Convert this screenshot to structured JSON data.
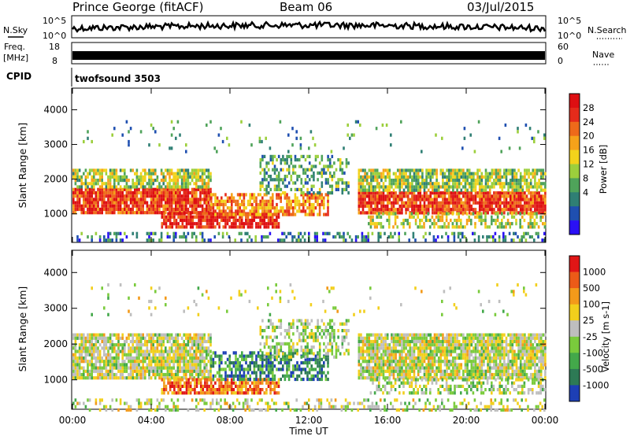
{
  "header": {
    "station": "Prince George (fitACF)",
    "beam": "Beam 06",
    "date": "03/Jul/2015"
  },
  "top_panels": {
    "nsky_label": "N.Sky",
    "nsky_ticks": [
      "10^5",
      "10^0"
    ],
    "nsearch_label": "N.Search",
    "nsearch_ticks": [
      "10^5",
      "10^0"
    ],
    "freq_label": "Freq.",
    "freq_unit": "[MHz]",
    "freq_ticks": [
      "18",
      "8"
    ],
    "nave_label": "Nave",
    "nave_ticks": [
      "60",
      "0"
    ],
    "cpid_label": "CPID",
    "cpid_value": "twofsound 3503"
  },
  "chart_data": [
    {
      "type": "heatmap",
      "name": "power",
      "ylabel": "Slant Range [km]",
      "yticks": [
        "4000",
        "3000",
        "2000",
        "1000"
      ],
      "ylim": [
        200,
        4600
      ],
      "xlim": [
        0,
        24
      ],
      "xticks": [
        "00:00",
        "04:00",
        "08:00",
        "12:00",
        "16:00",
        "20:00",
        "00:00"
      ],
      "colorbar": {
        "label": "Power [dB]",
        "ticks": [
          "28",
          "24",
          "20",
          "16",
          "12",
          "8",
          "4"
        ],
        "colors": [
          "#2a10f5",
          "#1f4fb0",
          "#2f7f74",
          "#4fa35a",
          "#9ccf3c",
          "#f2d21b",
          "#f6a21a",
          "#ee6a1a",
          "#e52b1b",
          "#de0f12"
        ]
      },
      "regions": [
        {
          "t0": 0.0,
          "t1": 24.0,
          "r0": 200,
          "r1": 480,
          "level": 0.25,
          "density": 0.35
        },
        {
          "t0": 0.0,
          "t1": 7.0,
          "r0": 1050,
          "r1": 1750,
          "level": 0.85,
          "density": 0.9
        },
        {
          "t0": 0.0,
          "t1": 7.0,
          "r0": 1750,
          "r1": 2300,
          "level": 0.45,
          "density": 0.75
        },
        {
          "t0": 4.5,
          "t1": 10.5,
          "r0": 600,
          "r1": 1050,
          "level": 0.9,
          "density": 0.85
        },
        {
          "t0": 7.0,
          "t1": 13.0,
          "r0": 1000,
          "r1": 1600,
          "level": 0.7,
          "density": 0.7
        },
        {
          "t0": 9.5,
          "t1": 14.0,
          "r0": 1600,
          "r1": 2700,
          "level": 0.35,
          "density": 0.45
        },
        {
          "t0": 14.5,
          "t1": 24.0,
          "r0": 1050,
          "r1": 1650,
          "level": 0.85,
          "density": 0.9
        },
        {
          "t0": 14.5,
          "t1": 24.0,
          "r0": 1650,
          "r1": 2300,
          "level": 0.45,
          "density": 0.75
        },
        {
          "t0": 15.0,
          "t1": 24.0,
          "r0": 600,
          "r1": 1050,
          "level": 0.5,
          "density": 0.55
        },
        {
          "t0": 0.0,
          "t1": 24.0,
          "r0": 2800,
          "r1": 3700,
          "level": 0.3,
          "density": 0.03
        }
      ]
    },
    {
      "type": "heatmap",
      "name": "velocity",
      "ylabel": "Slant Range [km]",
      "yticks": [
        "4000",
        "3000",
        "2000",
        "1000"
      ],
      "ylim": [
        200,
        4600
      ],
      "xlim": [
        0,
        24
      ],
      "xlabel": "Time UT",
      "xticks": [
        "00:00",
        "04:00",
        "08:00",
        "12:00",
        "16:00",
        "20:00",
        "00:00"
      ],
      "colorbar": {
        "label": "Velocity [m s-1]",
        "ticks": [
          "1000",
          "500",
          "100",
          "25",
          "-25",
          "-100",
          "-500",
          "-1000"
        ],
        "colors": [
          "#1d3fb5",
          "#2d7a55",
          "#43a84a",
          "#7acb3c",
          "#bebebe",
          "#f2cf1c",
          "#f39a1a",
          "#ec5b18",
          "#e01616"
        ]
      },
      "regions": [
        {
          "t0": 0.0,
          "t1": 24.0,
          "r0": 200,
          "r1": 480,
          "level": 0.5,
          "density": 0.3
        },
        {
          "t0": 0.0,
          "t1": 7.0,
          "r0": 1050,
          "r1": 2300,
          "level": 0.5,
          "density": 0.85
        },
        {
          "t0": 4.5,
          "t1": 10.5,
          "r0": 600,
          "r1": 1050,
          "level": 0.82,
          "density": 0.8
        },
        {
          "t0": 7.0,
          "t1": 13.0,
          "r0": 1000,
          "r1": 1800,
          "level": 0.2,
          "density": 0.6
        },
        {
          "t0": 9.5,
          "t1": 14.0,
          "r0": 1600,
          "r1": 2700,
          "level": 0.45,
          "density": 0.45
        },
        {
          "t0": 14.5,
          "t1": 24.0,
          "r0": 1050,
          "r1": 2300,
          "level": 0.5,
          "density": 0.85
        },
        {
          "t0": 15.0,
          "t1": 24.0,
          "r0": 600,
          "r1": 1050,
          "level": 0.45,
          "density": 0.5
        },
        {
          "t0": 0.0,
          "t1": 24.0,
          "r0": 2800,
          "r1": 3700,
          "level": 0.5,
          "density": 0.03
        }
      ]
    }
  ]
}
